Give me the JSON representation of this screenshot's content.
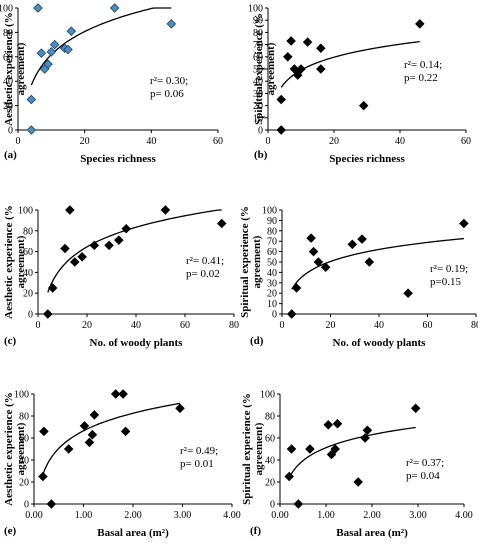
{
  "chart_data": [
    {
      "id": "a",
      "type": "scatter",
      "panel_label": "(a)",
      "xlabel": "Species richness",
      "ylabel": "Aesthetic experience (% agreement)",
      "xlim": [
        0,
        60
      ],
      "ylim": [
        0,
        100
      ],
      "xticks": [
        "0",
        "20",
        "40",
        "60"
      ],
      "yticks": [
        "0",
        "20",
        "40",
        "60",
        "80",
        "100"
      ],
      "marker": "diamond",
      "marker_color": "#4a8fc0",
      "marker_edge": "#1a3f6b",
      "x": [
        4,
        4,
        6,
        7,
        8,
        9,
        10,
        11,
        14,
        15,
        16,
        29,
        46
      ],
      "y": [
        0,
        25,
        100,
        63,
        50,
        54,
        64,
        70,
        67,
        66,
        81,
        100,
        87
      ],
      "trend": "logarithmic",
      "annotation": [
        "r²= 0.30;",
        "p= 0.06"
      ]
    },
    {
      "id": "b",
      "type": "scatter",
      "panel_label": "(b)",
      "xlabel": "Species richness",
      "ylabel": "Spiritual experience (% agreement)",
      "xlim": [
        0,
        60
      ],
      "ylim": [
        0,
        100
      ],
      "xticks": [
        "0",
        "20",
        "40",
        "60"
      ],
      "yticks": [
        "0",
        "10",
        "20",
        "30",
        "40",
        "50",
        "60",
        "70",
        "80",
        "90",
        "100"
      ],
      "marker": "diamond",
      "marker_color": "#000000",
      "marker_edge": "#000000",
      "x": [
        4,
        4,
        6,
        7,
        8,
        9,
        10,
        12,
        16,
        16,
        29,
        46
      ],
      "y": [
        0,
        25,
        60,
        73,
        50,
        45,
        50,
        72,
        50,
        67,
        20,
        87
      ],
      "trend": "logarithmic",
      "annotation": [
        "r²= 0.14;",
        "p= 0.22"
      ]
    },
    {
      "id": "c",
      "type": "scatter",
      "panel_label": "(c)",
      "xlabel": "No. of woody plants",
      "ylabel": "Aesthetic experience (% agreement)",
      "xlim": [
        0,
        80
      ],
      "ylim": [
        0,
        100
      ],
      "xticks": [
        "0",
        "20",
        "40",
        "60",
        "80"
      ],
      "yticks": [
        "0",
        "20",
        "40",
        "60",
        "80",
        "100"
      ],
      "marker": "diamond",
      "marker_color": "#000000",
      "marker_edge": "#000000",
      "x": [
        4,
        6,
        11,
        13,
        15,
        18,
        23,
        29,
        33,
        36,
        52,
        75
      ],
      "y": [
        0,
        25,
        63,
        100,
        50,
        55,
        66,
        66,
        71,
        82,
        100,
        87
      ],
      "trend": "logarithmic",
      "annotation": [
        "r²= 0.41;",
        "p= 0.02"
      ]
    },
    {
      "id": "d",
      "type": "scatter",
      "panel_label": "(d)",
      "xlabel": "No. of woody plants",
      "ylabel": "Spiritual experience (% agreement)",
      "xlim": [
        0,
        80
      ],
      "ylim": [
        0,
        100
      ],
      "xticks": [
        "0",
        "20",
        "40",
        "60",
        "80"
      ],
      "yticks": [
        "0",
        "10",
        "20",
        "30",
        "40",
        "50",
        "60",
        "70",
        "80",
        "90",
        "100"
      ],
      "marker": "diamond",
      "marker_color": "#000000",
      "marker_edge": "#000000",
      "x": [
        4,
        6,
        12,
        13,
        15,
        18,
        29,
        33,
        36,
        52,
        75
      ],
      "y": [
        0,
        25,
        73,
        60,
        50,
        45,
        67,
        72,
        50,
        20,
        87
      ],
      "trend": "logarithmic",
      "annotation": [
        "r²= 0.19;",
        "p=0.15"
      ]
    },
    {
      "id": "e",
      "type": "scatter",
      "panel_label": "(e)",
      "xlabel": "Basal area (m²)",
      "ylabel": "Aesthetic experience (% agreement)",
      "xlim": [
        0,
        4
      ],
      "ylim": [
        0,
        100
      ],
      "xticks": [
        "0.00",
        "1.00",
        "2.00",
        "3.00",
        "4.00"
      ],
      "yticks": [
        "0",
        "20",
        "40",
        "60",
        "80",
        "100"
      ],
      "marker": "diamond",
      "marker_color": "#000000",
      "marker_edge": "#000000",
      "x": [
        0.18,
        0.2,
        0.35,
        0.7,
        1.02,
        1.12,
        1.18,
        1.22,
        1.65,
        1.8,
        1.85,
        2.95
      ],
      "y": [
        25,
        66,
        0,
        50,
        71,
        56,
        63,
        81,
        100,
        100,
        66,
        87
      ],
      "trend": "logarithmic",
      "annotation": [
        "r²= 0.49;",
        "p= 0.01"
      ]
    },
    {
      "id": "f",
      "type": "scatter",
      "panel_label": "(f)",
      "xlabel": "Basal area (m²)",
      "ylabel": "Spiritual experience (% agreement)",
      "xlim": [
        0,
        4
      ],
      "ylim": [
        0,
        100
      ],
      "xticks": [
        "0.00",
        "1.00",
        "2.00",
        "3.00",
        "4.00"
      ],
      "yticks": [
        "0",
        "20",
        "40",
        "60",
        "80",
        "100"
      ],
      "marker": "diamond",
      "marker_color": "#000000",
      "marker_edge": "#000000",
      "x": [
        0.2,
        0.25,
        0.4,
        0.65,
        1.05,
        1.12,
        1.2,
        1.25,
        1.7,
        1.85,
        1.9,
        2.95
      ],
      "y": [
        25,
        50,
        0,
        50,
        72,
        45,
        50,
        73,
        20,
        60,
        67,
        87
      ],
      "trend": "logarithmic",
      "annotation": [
        "r²= 0.37;",
        "p= 0.04"
      ]
    }
  ]
}
